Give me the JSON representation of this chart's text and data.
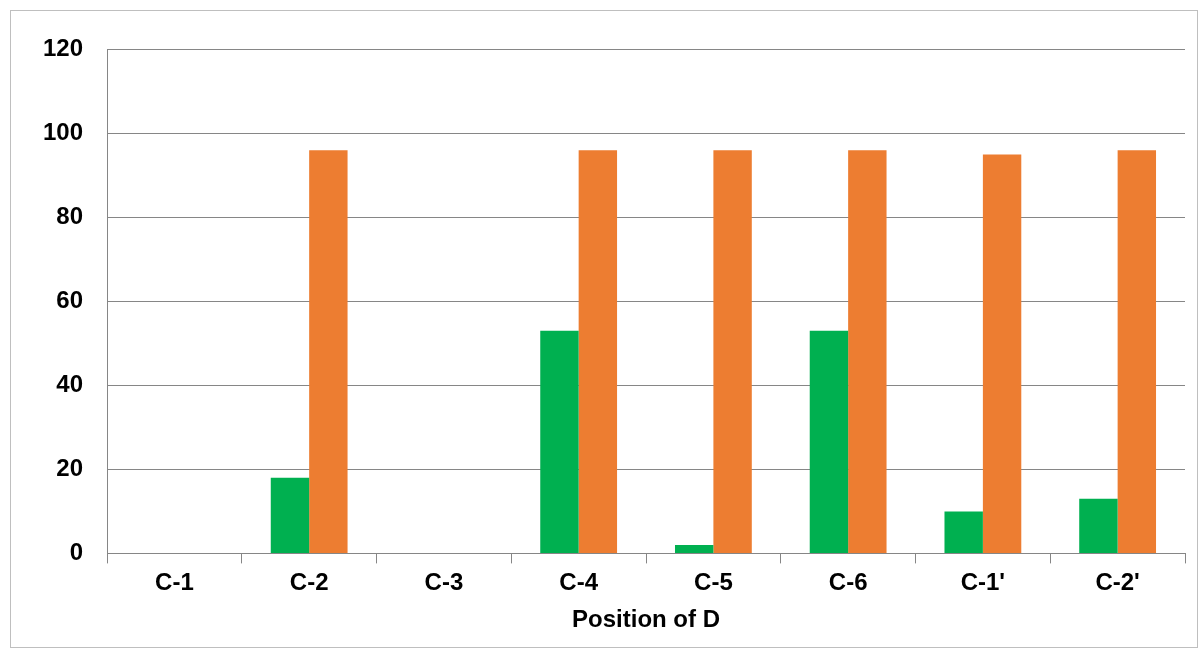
{
  "chart_data": {
    "type": "bar",
    "xlabel": "Position of D",
    "categories": [
      "C-1",
      "C-2",
      "C-3",
      "C-4",
      "C-5",
      "C-6",
      "C-1'",
      "C-2'"
    ],
    "series": [
      {
        "color": "#00b050",
        "values": [
          0,
          18,
          0,
          53,
          2,
          53,
          10,
          13
        ]
      },
      {
        "color": "#ed7d31",
        "values": [
          0,
          96,
          0,
          96,
          96,
          96,
          95,
          96
        ]
      }
    ],
    "ylim": [
      0,
      120
    ],
    "yticks": [
      0,
      20,
      40,
      60,
      80,
      100,
      120
    ],
    "grid": "y",
    "legend": false
  }
}
